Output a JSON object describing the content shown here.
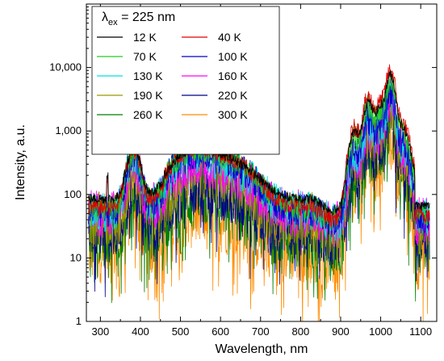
{
  "chart_data": {
    "type": "line",
    "xlabel": "Wavelength, nm",
    "ylabel": "Intensity, a.u.",
    "xlim": [
      265,
      1140
    ],
    "ylim": [
      1,
      100000
    ],
    "y_scale": "log",
    "x_ticks": [
      300,
      400,
      500,
      600,
      700,
      800,
      900,
      1000,
      1100
    ],
    "x_tick_labels": [
      "300",
      "400",
      "500",
      "600",
      "700",
      "800",
      "900",
      "1000",
      "1100"
    ],
    "y_ticks": [
      1,
      10,
      100,
      1000,
      10000
    ],
    "y_tick_labels": [
      "1",
      "10",
      "100",
      "1,000",
      "10,000"
    ],
    "grid": false,
    "legend": {
      "placement": "top-left",
      "title_main": "λ",
      "title_sub": "ex",
      "title_rest": " = 225 nm",
      "columns": 2
    },
    "series": [
      {
        "name": "12 K",
        "color": "#000000",
        "peak380": 420,
        "plateau": 380,
        "tail": 95,
        "nir": 7500
      },
      {
        "name": "40 K",
        "color": "#e00000",
        "peak380": 430,
        "plateau": 410,
        "tail": 70,
        "nir": 9000
      },
      {
        "name": "70 K",
        "color": "#22cc22",
        "peak380": 400,
        "plateau": 390,
        "tail": 68,
        "nir": 6500
      },
      {
        "name": "100 K",
        "color": "#0000cc",
        "peak380": 320,
        "plateau": 340,
        "tail": 62,
        "nir": 4000
      },
      {
        "name": "130 K",
        "color": "#00e0e0",
        "peak380": 300,
        "plateau": 300,
        "tail": 60,
        "nir": 3500
      },
      {
        "name": "160 K",
        "color": "#ff00ff",
        "peak380": 230,
        "plateau": 220,
        "tail": 55,
        "nir": 3000
      },
      {
        "name": "190 K",
        "color": "#999900",
        "peak380": 170,
        "plateau": 130,
        "tail": 45,
        "nir": 2500
      },
      {
        "name": "220 K",
        "color": "#00008b",
        "peak380": 130,
        "plateau": 95,
        "tail": 38,
        "nir": 2000
      },
      {
        "name": "260 K",
        "color": "#008000",
        "peak380": 95,
        "plateau": 60,
        "tail": 28,
        "nir": 1600
      },
      {
        "name": "300 K",
        "color": "#ff8c00",
        "peak380": 60,
        "plateau": 35,
        "tail": 18,
        "nir": 1200
      }
    ]
  }
}
